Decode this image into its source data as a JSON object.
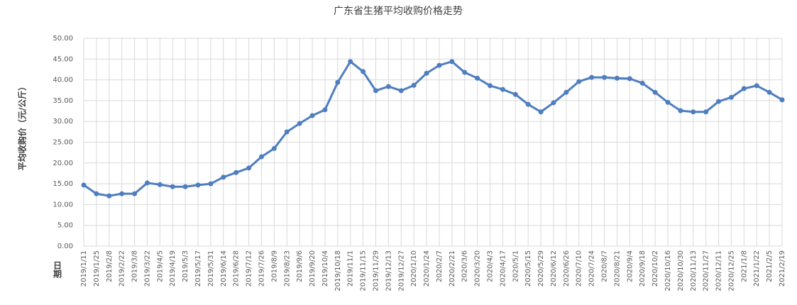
{
  "chart_data": {
    "type": "line",
    "title": "广东省生猪平均收购价格走势",
    "y_label": "平均收购价（元/公斤）",
    "x_label": "日期",
    "categories": [
      "2019/1/11",
      "2019/1/25",
      "2019/2/8",
      "2019/2/22",
      "2019/3/8",
      "2019/3/22",
      "2019/4/5",
      "2019/4/19",
      "2019/5/3",
      "2019/5/17",
      "2019/5/31",
      "2019/6/14",
      "2019/6/28",
      "2019/7/12",
      "2019/7/26",
      "2019/8/9",
      "2019/8/23",
      "2019/9/6",
      "2019/9/20",
      "2019/10/4",
      "2019/10/18",
      "2019/11/1",
      "2019/11/15",
      "2019/11/29",
      "2019/12/13",
      "2019/12/27",
      "2020/1/10",
      "2020/1/24",
      "2020/2/7",
      "2020/2/21",
      "2020/3/6",
      "2020/3/20",
      "2020/4/3",
      "2020/4/17",
      "2020/5/1",
      "2020/5/15",
      "2020/5/29",
      "2020/6/12",
      "2020/6/26",
      "2020/7/10",
      "2020/7/24",
      "2020/8/7",
      "2020/8/21",
      "2020/9/4",
      "2020/9/18",
      "2020/10/2",
      "2020/10/16",
      "2020/10/30",
      "2020/11/13",
      "2020/11/27",
      "2020/12/11",
      "2020/12/25",
      "2021/1/8",
      "2021/1/22",
      "2021/2/5",
      "2021/2/19"
    ],
    "series": [
      {
        "name": "平均收购价",
        "color": "#4f7ec0",
        "values": [
          14.7,
          12.6,
          12.1,
          12.6,
          12.6,
          15.2,
          14.8,
          14.3,
          14.3,
          14.7,
          15.0,
          16.6,
          17.7,
          18.8,
          21.5,
          23.5,
          27.5,
          29.5,
          31.4,
          32.8,
          39.4,
          44.4,
          42.0,
          37.4,
          38.4,
          37.4,
          38.7,
          41.6,
          43.5,
          44.4,
          41.8,
          40.4,
          38.6,
          37.7,
          36.5,
          34.1,
          32.3,
          34.5,
          37.0,
          39.6,
          40.6,
          40.6,
          40.4,
          40.3,
          39.2,
          37.0,
          34.6,
          32.6,
          32.3,
          32.3,
          34.8,
          35.8,
          37.9,
          38.6,
          37.0,
          35.2
        ]
      }
    ],
    "ylim": [
      0,
      50
    ],
    "yticks": [
      {
        "value": 0,
        "label": "0.00"
      },
      {
        "value": 5,
        "label": "5.00"
      },
      {
        "value": 10,
        "label": "10.00"
      },
      {
        "value": 15,
        "label": "15.00"
      },
      {
        "value": 20,
        "label": "20.00"
      },
      {
        "value": 25,
        "label": "25.00"
      },
      {
        "value": 30,
        "label": "30.00"
      },
      {
        "value": 35,
        "label": "35.00"
      },
      {
        "value": 40,
        "label": "40.00"
      },
      {
        "value": 45,
        "label": "45.00"
      },
      {
        "value": 50,
        "label": "50.00"
      }
    ],
    "grid": true
  }
}
